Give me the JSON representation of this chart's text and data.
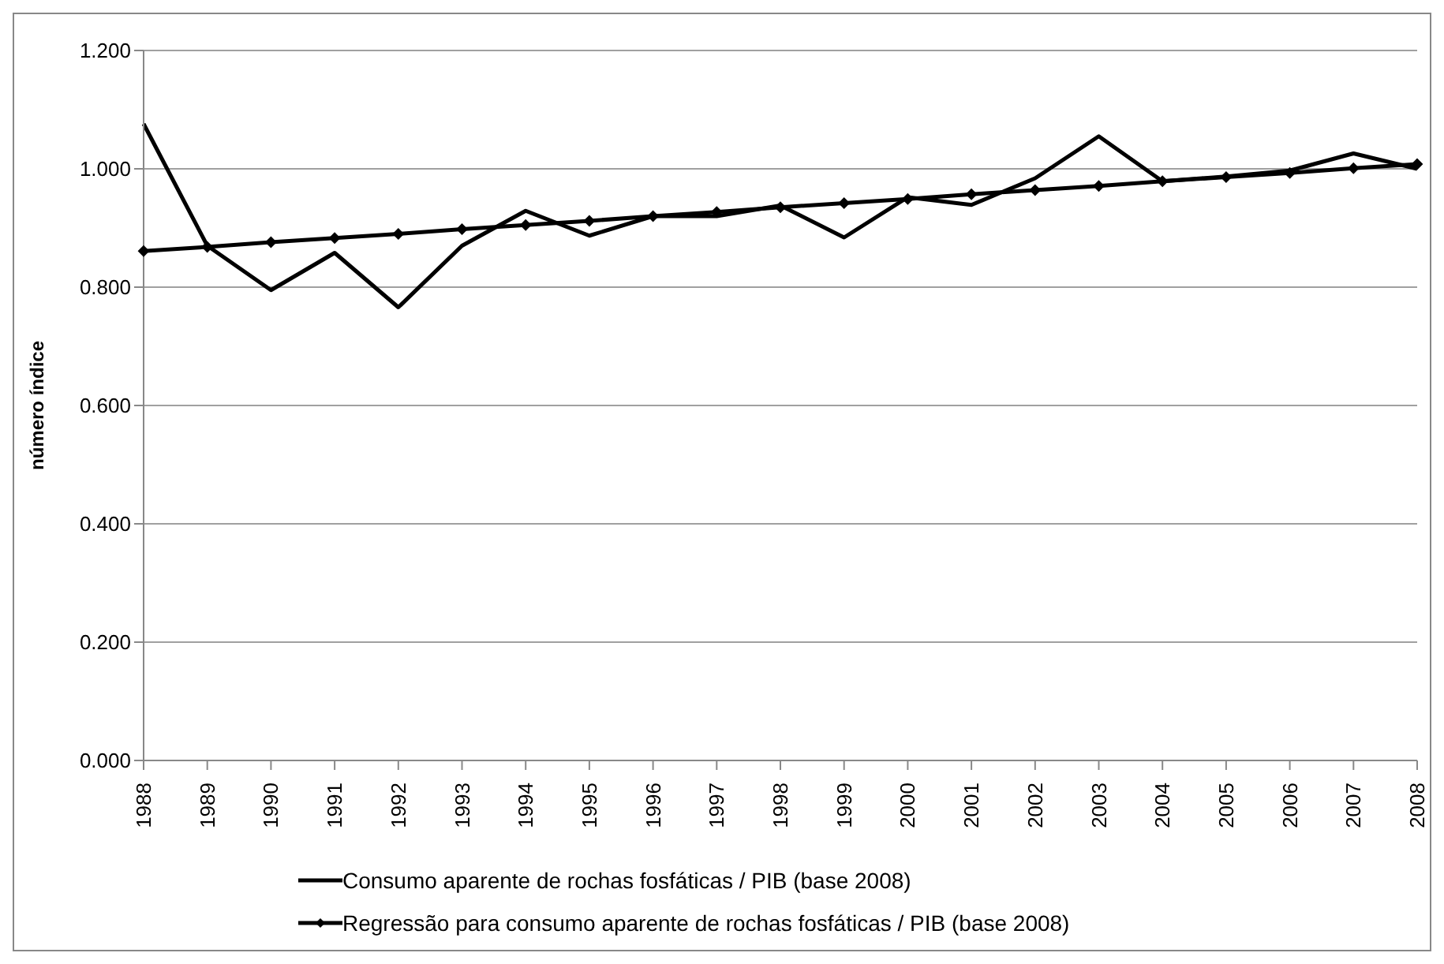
{
  "chart_data": {
    "type": "line",
    "ylabel": "número índice",
    "categories": [
      "1988",
      "1989",
      "1990",
      "1991",
      "1992",
      "1993",
      "1994",
      "1995",
      "1996",
      "1997",
      "1998",
      "1999",
      "2000",
      "2001",
      "2002",
      "2003",
      "2004",
      "2005",
      "2006",
      "2007",
      "2008"
    ],
    "series": [
      {
        "name": "Consumo aparente de rochas fosfáticas / PIB (base 2008)",
        "color": "#000000",
        "marker": "none",
        "values": [
          1.076,
          0.87,
          0.795,
          0.858,
          0.766,
          0.87,
          0.929,
          0.887,
          0.92,
          0.92,
          0.938,
          0.884,
          0.952,
          0.939,
          0.984,
          1.055,
          0.979,
          0.987,
          0.997,
          1.026,
          1.0
        ]
      },
      {
        "name": "Regressão para consumo aparente de rochas fosfáticas / PIB (base 2008)",
        "color": "#000000",
        "marker": "diamond",
        "values": [
          0.861,
          0.868,
          0.876,
          0.883,
          0.89,
          0.898,
          0.905,
          0.912,
          0.92,
          0.927,
          0.935,
          0.942,
          0.949,
          0.957,
          0.964,
          0.971,
          0.979,
          0.986,
          0.993,
          1.001,
          1.008
        ]
      }
    ],
    "ylim": [
      0,
      1.2
    ],
    "yticks": [
      {
        "value": 0,
        "label": "0.000"
      },
      {
        "value": 0.2,
        "label": "0.200"
      },
      {
        "value": 0.4,
        "label": "0.400"
      },
      {
        "value": 0.6,
        "label": "0.600"
      },
      {
        "value": 0.8,
        "label": "0.800"
      },
      {
        "value": 1.0,
        "label": "1.000"
      },
      {
        "value": 1.2,
        "label": "1.200"
      }
    ],
    "grid": "y",
    "legend": "bottom",
    "line_style": "solid"
  }
}
